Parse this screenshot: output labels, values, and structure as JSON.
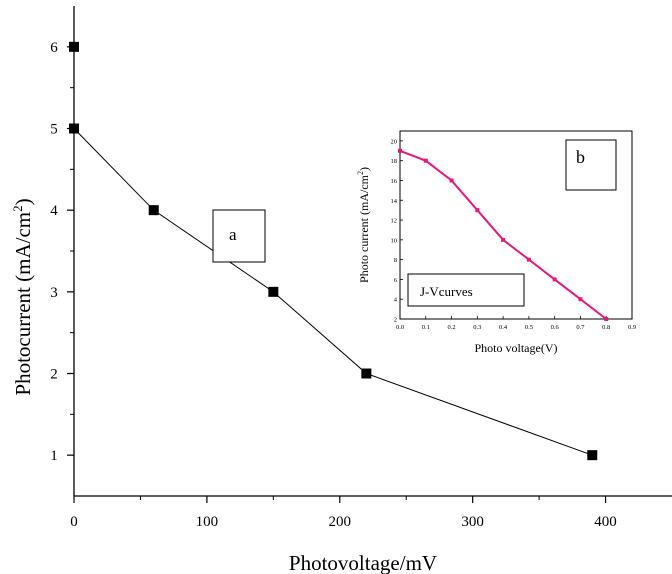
{
  "chart_data": [
    {
      "type": "line",
      "title": "",
      "xlabel": "Photovoltage/mV",
      "ylabel": "Photocurrent (mA/cm",
      "ylabel_sup": "2",
      "ylabel_close": ")",
      "xlim": [
        0,
        450
      ],
      "ylim": [
        0.5,
        6.5
      ],
      "x_ticks": [
        0,
        100,
        200,
        300,
        400
      ],
      "y_ticks": [
        1,
        2,
        3,
        4,
        5,
        6
      ],
      "series": [
        {
          "x": [
            0,
            0,
            60,
            150,
            220,
            390
          ],
          "y": [
            6,
            5,
            4,
            3,
            2,
            1
          ]
        }
      ],
      "line_connect_from_index": 1,
      "marker": "square",
      "color": "#000000",
      "annotation_box": "a"
    },
    {
      "type": "line",
      "title": "",
      "xlabel": "Photo voltage(V)",
      "ylabel": "Photo current (mA/cm",
      "ylabel_sup": "2",
      "ylabel_close": ")",
      "xlim": [
        0.0,
        0.9
      ],
      "ylim": [
        2,
        21
      ],
      "x_ticks": [
        "0.0",
        "0.1",
        "0.2",
        "0.3",
        "0.4",
        "0.5",
        "0.6",
        "0.7",
        "0.8",
        "0.9"
      ],
      "y_ticks": [
        2,
        4,
        6,
        8,
        10,
        12,
        14,
        16,
        18,
        20
      ],
      "series": [
        {
          "x": [
            0.0,
            0.1,
            0.2,
            0.3,
            0.4,
            0.5,
            0.6,
            0.7,
            0.8
          ],
          "y": [
            19,
            18,
            16,
            13,
            10,
            8,
            6,
            4,
            2
          ]
        }
      ],
      "marker": "square",
      "color": "#e6177a",
      "annotation_box": "b",
      "legend_box": "J-Vcurves"
    }
  ]
}
